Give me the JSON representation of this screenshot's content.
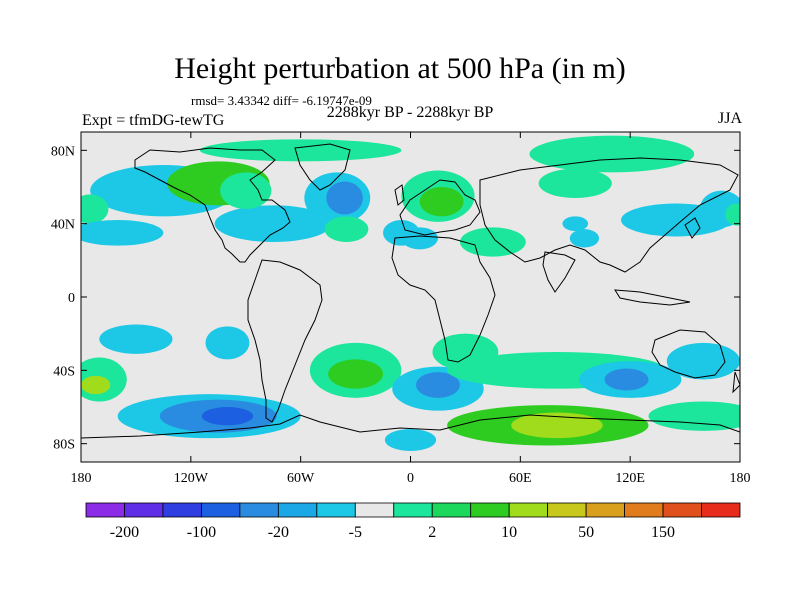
{
  "title": "Height perturbation at 500 hPa (in m)",
  "rmsd_text": "rmsd= 3.43342 diff= -6.19747e-09",
  "left_label": "Expt = tfmDG-tewTG",
  "center_label": "2288kyr BP - 2288kyr BP",
  "right_label": "JJA",
  "map": {
    "projection": "cylindrical equidistant",
    "lon_range": [
      -180,
      180
    ],
    "lat_range": [
      -90,
      90
    ],
    "background_color": "#e8e8e8",
    "lat_ticks": [
      {
        "value": 80,
        "label": "80N"
      },
      {
        "value": 40,
        "label": "40N"
      },
      {
        "value": 0,
        "label": "0"
      },
      {
        "value": -40,
        "label": "40S"
      },
      {
        "value": -80,
        "label": "80S"
      }
    ],
    "lon_ticks": [
      {
        "value": -180,
        "label": "180"
      },
      {
        "value": -120,
        "label": "120W"
      },
      {
        "value": -60,
        "label": "60W"
      },
      {
        "value": 0,
        "label": "0"
      },
      {
        "value": 60,
        "label": "60E"
      },
      {
        "value": 120,
        "label": "120E"
      },
      {
        "value": 180,
        "label": "180"
      }
    ]
  },
  "colorbar": {
    "colors": [
      "#8c2ce6",
      "#5f2ee6",
      "#2f3ee0",
      "#1c5fe0",
      "#2a8ce0",
      "#1ca8e6",
      "#1cc8e6",
      "#e8e8e8",
      "#1ce69c",
      "#1cd85c",
      "#2ecc20",
      "#a0dc1c",
      "#c8c81c",
      "#d8a01c",
      "#e07c1c",
      "#e0501c",
      "#e82c1c"
    ],
    "labels": [
      {
        "after_index": 0,
        "text": "-200"
      },
      {
        "after_index": 2,
        "text": "-100"
      },
      {
        "after_index": 4,
        "text": "-20"
      },
      {
        "after_index": 6,
        "text": "-5"
      },
      {
        "after_index": 8,
        "text": "2"
      },
      {
        "after_index": 10,
        "text": "10"
      },
      {
        "after_index": 12,
        "text": "50"
      },
      {
        "after_index": 14,
        "text": "150"
      }
    ]
  },
  "features": [
    {
      "name": "blob-npac-cyan",
      "lon": -135,
      "lat": 58,
      "rx": 40,
      "ry": 14,
      "fill": "#1cc8e6"
    },
    {
      "name": "blob-namer-green",
      "lon": -105,
      "lat": 62,
      "rx": 28,
      "ry": 12,
      "fill": "#2ecc20"
    },
    {
      "name": "blob-arctic-green",
      "lon": -60,
      "lat": 80,
      "rx": 55,
      "ry": 6,
      "fill": "#1ce69c"
    },
    {
      "name": "blob-natl-cyan",
      "lon": -40,
      "lat": 54,
      "rx": 18,
      "ry": 14,
      "fill": "#1cc8e6"
    },
    {
      "name": "blob-natl-blue",
      "lon": -36,
      "lat": 54,
      "rx": 10,
      "ry": 9,
      "fill": "#2a8ce0"
    },
    {
      "name": "blob-nafrica-cyan",
      "lon": -75,
      "lat": 40,
      "rx": 32,
      "ry": 10,
      "fill": "#1cc8e6"
    },
    {
      "name": "blob-natl-green",
      "lon": -90,
      "lat": 58,
      "rx": 14,
      "ry": 10,
      "fill": "#1ce69c"
    },
    {
      "name": "blob-midatl-green",
      "lon": -35,
      "lat": 37,
      "rx": 12,
      "ry": 7,
      "fill": "#1ce69c"
    },
    {
      "name": "blob-eur-green",
      "lon": 15,
      "lat": 55,
      "rx": 20,
      "ry": 14,
      "fill": "#1ce69c"
    },
    {
      "name": "blob-eur-green2",
      "lon": 17,
      "lat": 52,
      "rx": 12,
      "ry": 8,
      "fill": "#2ecc20"
    },
    {
      "name": "blob-arctic-east-green",
      "lon": 110,
      "lat": 78,
      "rx": 45,
      "ry": 10,
      "fill": "#1ce69c"
    },
    {
      "name": "blob-siberia-green",
      "lon": 90,
      "lat": 62,
      "rx": 20,
      "ry": 8,
      "fill": "#1ce69c"
    },
    {
      "name": "blob-med-cyan",
      "lon": 5,
      "lat": 32,
      "rx": 10,
      "ry": 6,
      "fill": "#1cc8e6"
    },
    {
      "name": "blob-mideast-green",
      "lon": 45,
      "lat": 30,
      "rx": 18,
      "ry": 8,
      "fill": "#1ce69c"
    },
    {
      "name": "blob-asia-cyan",
      "lon": 95,
      "lat": 32,
      "rx": 8,
      "ry": 5,
      "fill": "#1cc8e6"
    },
    {
      "name": "blob-npac-cyan2",
      "lon": 145,
      "lat": 42,
      "rx": 30,
      "ry": 9,
      "fill": "#1cc8e6"
    },
    {
      "name": "blob-wpac-green",
      "lon": -175,
      "lat": 48,
      "rx": 10,
      "ry": 8,
      "fill": "#1ce69c"
    },
    {
      "name": "blob-epac-cyan",
      "lon": -160,
      "lat": 35,
      "rx": 25,
      "ry": 7,
      "fill": "#1cc8e6"
    },
    {
      "name": "blob-atl-cyan",
      "lon": -5,
      "lat": 35,
      "rx": 10,
      "ry": 7,
      "fill": "#1cc8e6"
    },
    {
      "name": "blob-ind-cyan",
      "lon": 90,
      "lat": 40,
      "rx": 7,
      "ry": 4,
      "fill": "#1cc8e6"
    },
    {
      "name": "blob-spac-cyan",
      "lon": -150,
      "lat": -23,
      "rx": 20,
      "ry": 8,
      "fill": "#1cc8e6"
    },
    {
      "name": "blob-spac-cyan2",
      "lon": -100,
      "lat": -25,
      "rx": 12,
      "ry": 9,
      "fill": "#1cc8e6"
    },
    {
      "name": "blob-satl-green",
      "lon": -30,
      "lat": -40,
      "rx": 25,
      "ry": 15,
      "fill": "#1ce69c"
    },
    {
      "name": "blob-satl-green2",
      "lon": -30,
      "lat": -42,
      "rx": 15,
      "ry": 8,
      "fill": "#2ecc20"
    },
    {
      "name": "blob-sind-cyan",
      "lon": 15,
      "lat": -50,
      "rx": 25,
      "ry": 12,
      "fill": "#1cc8e6"
    },
    {
      "name": "blob-sind-blue",
      "lon": 15,
      "lat": -48,
      "rx": 12,
      "ry": 7,
      "fill": "#2a8ce0"
    },
    {
      "name": "blob-sind-green",
      "lon": 30,
      "lat": -30,
      "rx": 18,
      "ry": 10,
      "fill": "#1ce69c"
    },
    {
      "name": "blob-sind-green2",
      "lon": 80,
      "lat": -40,
      "rx": 60,
      "ry": 10,
      "fill": "#1ce69c"
    },
    {
      "name": "blob-sind-cyan2",
      "lon": 120,
      "lat": -45,
      "rx": 28,
      "ry": 10,
      "fill": "#1cc8e6"
    },
    {
      "name": "blob-sind-blue2",
      "lon": 118,
      "lat": -45,
      "rx": 12,
      "ry": 6,
      "fill": "#2a8ce0"
    },
    {
      "name": "blob-aus-cyan",
      "lon": 160,
      "lat": -35,
      "rx": 20,
      "ry": 10,
      "fill": "#1cc8e6"
    },
    {
      "name": "blob-antarctic-green",
      "lon": 75,
      "lat": -70,
      "rx": 55,
      "ry": 11,
      "fill": "#2ecc20"
    },
    {
      "name": "blob-antarctic-yellow",
      "lon": 80,
      "lat": -70,
      "rx": 25,
      "ry": 7,
      "fill": "#a0dc1c"
    },
    {
      "name": "blob-antarctic-green2",
      "lon": 160,
      "lat": -65,
      "rx": 30,
      "ry": 8,
      "fill": "#1ce69c"
    },
    {
      "name": "blob-spac-cyan3",
      "lon": -110,
      "lat": -65,
      "rx": 50,
      "ry": 12,
      "fill": "#1cc8e6"
    },
    {
      "name": "blob-spac-blue",
      "lon": -105,
      "lat": -65,
      "rx": 32,
      "ry": 9,
      "fill": "#2a8ce0"
    },
    {
      "name": "blob-spac-blue2",
      "lon": -100,
      "lat": -65,
      "rx": 14,
      "ry": 5,
      "fill": "#1c5fe0"
    },
    {
      "name": "blob-wpac-green2",
      "lon": -170,
      "lat": -45,
      "rx": 15,
      "ry": 12,
      "fill": "#1ce69c"
    },
    {
      "name": "blob-wpac-yellow",
      "lon": -172,
      "lat": -48,
      "rx": 8,
      "ry": 5,
      "fill": "#a0dc1c"
    },
    {
      "name": "blob-se-atl-cyan",
      "lon": 0,
      "lat": -78,
      "rx": 14,
      "ry": 6,
      "fill": "#1cc8e6"
    },
    {
      "name": "blob-east-cyan",
      "lon": 170,
      "lat": 48,
      "rx": 12,
      "ry": 10,
      "fill": "#1cc8e6"
    },
    {
      "name": "blob-east-green",
      "lon": 178,
      "lat": 45,
      "rx": 6,
      "ry": 6,
      "fill": "#1ce69c"
    }
  ]
}
